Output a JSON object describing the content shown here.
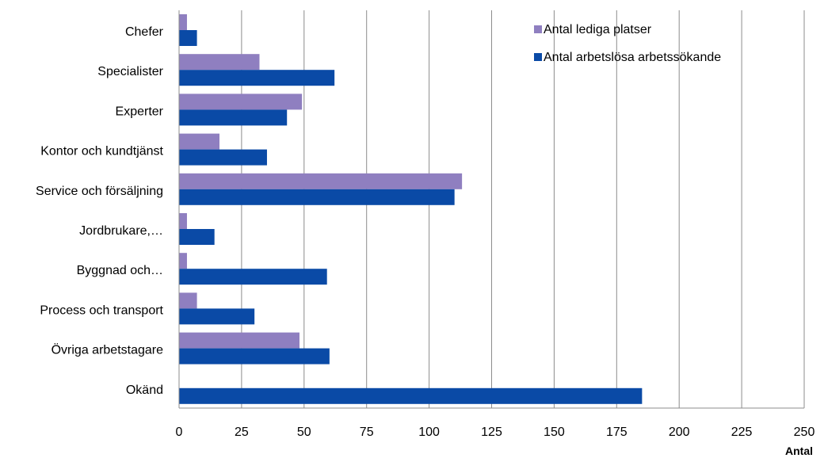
{
  "chart_data": {
    "type": "bar",
    "orientation": "horizontal",
    "categories": [
      "Chefer",
      "Specialister",
      "Experter",
      "Kontor och kundtjänst",
      "Service och försäljning",
      "Jordbrukare,…",
      "Byggnad och…",
      "Process och transport",
      "Övriga arbetstagare",
      "Okänd"
    ],
    "series": [
      {
        "name": "Antal lediga platser",
        "color": "#8f7fc0",
        "values": [
          3,
          32,
          49,
          16,
          113,
          3,
          3,
          7,
          48,
          0
        ]
      },
      {
        "name": "Antal arbetslösa arbetssökande",
        "color": "#0a4aa6",
        "values": [
          7,
          62,
          43,
          35,
          110,
          14,
          59,
          30,
          60,
          185
        ]
      }
    ],
    "xlabel": "Antal",
    "xlim": [
      0,
      250
    ],
    "xticks": [
      "0",
      "25",
      "50",
      "75",
      "100",
      "125",
      "150",
      "175",
      "200",
      "225",
      "250"
    ],
    "grid": "vertical",
    "legend_position": "top-right"
  }
}
